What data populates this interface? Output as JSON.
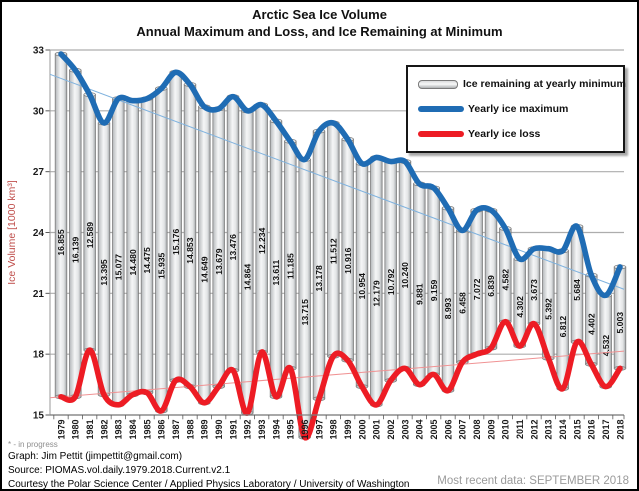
{
  "title": {
    "line1": "Arctic Sea Ice Volume",
    "line2": "Annual Maximum and Loss, and Ice Remaining at Minimum"
  },
  "y_axis": {
    "title": "Ice Volume [1000 km³]",
    "min": 15,
    "max": 33,
    "title_color": "#C0504D"
  },
  "legend": {
    "items": [
      {
        "label": "Ice remaining at yearly minimum",
        "swatch": "gray-bar"
      },
      {
        "label": "Yearly ice maximum",
        "swatch": "blue-line"
      },
      {
        "label": "Yearly ice loss",
        "swatch": "red-line"
      }
    ]
  },
  "footer": {
    "note": "* - in progress",
    "graph_credit": "Graph: Jim Pettit (jimpettit@gmail.com)",
    "source": "Source: PIOMAS.vol.daily.1979.2018.Current.v2.1",
    "courtesy": "Courtesy the Polar Science Center / Applied Physics Laboratory / University of Washington",
    "most_recent": "Most recent data: SEPTEMBER 2018"
  },
  "colors": {
    "max_line": "#1F6CB4",
    "loss_line": "#ED1C24",
    "max_trend": "#7FB2DE",
    "loss_trend": "#F09293",
    "gridline": "#ADADAD",
    "axis_text": "#1B1B1B",
    "y_axis_title": "#C0504D",
    "muted_text": "#9B9B9B",
    "bar_edge": "#7C7C7C"
  },
  "chart_data": {
    "type": "bar",
    "subtype": "bar+smooth-line combo; bars hang from the yearly-maximum line down to the yearly-loss line so bar length = ice remaining at minimum",
    "title": "Arctic Sea Ice Volume",
    "subtitle": "Annual Maximum and Loss, and Ice Remaining at Minimum",
    "ylabel": "Ice Volume [1000 km³]",
    "ylim": [
      15,
      33
    ],
    "yticks": [
      15,
      18,
      21,
      24,
      27,
      30,
      33
    ],
    "grid": "horizontal",
    "legend_position": "top-right inset",
    "categories": [
      1979,
      1980,
      1981,
      1982,
      1983,
      1984,
      1985,
      1986,
      1987,
      1988,
      1989,
      1990,
      1991,
      1992,
      1993,
      1994,
      1995,
      1996,
      1997,
      1998,
      1999,
      2000,
      2001,
      2002,
      2003,
      2004,
      2005,
      2006,
      2007,
      2008,
      2009,
      2010,
      2011,
      2012,
      2013,
      2014,
      2015,
      2016,
      2017,
      2018
    ],
    "series": [
      {
        "name": "Ice remaining at yearly minimum",
        "type": "bar",
        "values": [
          16.855,
          16.139,
          12.589,
          13.395,
          15.077,
          14.48,
          14.475,
          15.935,
          15.176,
          14.853,
          14.649,
          13.679,
          13.476,
          14.864,
          12.234,
          13.611,
          11.185,
          13.715,
          13.178,
          11.512,
          10.916,
          10.954,
          12.179,
          10.792,
          10.24,
          9.881,
          9.159,
          8.993,
          6.458,
          7.072,
          6.839,
          4.582,
          4.302,
          3.673,
          5.392,
          6.812,
          5.684,
          4.402,
          4.532,
          5.003
        ],
        "labels": [
          "16.855",
          "16.139",
          "12.589",
          "13.395",
          "15.077",
          "14.480",
          "14.475",
          "15.935",
          "15.176",
          "14.853",
          "14.649",
          "13.679",
          "13.476",
          "14.864",
          "12.234",
          "13.611",
          "11.185",
          "13.715",
          "13.178",
          "11.512",
          "10.916",
          "10.954",
          "12.179",
          "10.792",
          "10.240",
          "9.881",
          "9.159",
          "8.993",
          "6.458",
          "7.072",
          "6.839",
          "4.582",
          "4.302",
          "3.673",
          "5.392",
          "6.812",
          "5.684",
          "4.402",
          "4.532",
          "5.003"
        ]
      },
      {
        "name": "Yearly ice maximum",
        "type": "smooth-line",
        "color": "#1F6CB4",
        "estimated": true,
        "values": [
          32.8,
          32.0,
          30.8,
          29.4,
          30.6,
          30.5,
          30.6,
          31.1,
          31.9,
          31.3,
          30.2,
          30.1,
          30.7,
          30.0,
          30.3,
          29.5,
          28.5,
          27.6,
          29.0,
          29.4,
          28.6,
          27.4,
          27.7,
          27.5,
          27.5,
          26.4,
          26.2,
          25.2,
          24.1,
          25.1,
          25.1,
          24.2,
          22.7,
          23.2,
          23.2,
          23.1,
          24.3,
          21.9,
          20.9,
          22.3
        ]
      },
      {
        "name": "Yearly ice loss",
        "type": "smooth-line",
        "color": "#ED1C24",
        "estimated": true,
        "values": [
          15.9,
          15.9,
          18.2,
          16.0,
          15.5,
          16.0,
          16.1,
          15.2,
          16.7,
          16.4,
          15.6,
          16.4,
          17.2,
          15.1,
          18.1,
          15.9,
          17.3,
          13.9,
          15.8,
          17.9,
          17.7,
          16.4,
          15.5,
          16.7,
          17.3,
          16.5,
          17.0,
          16.2,
          17.6,
          18.0,
          18.3,
          19.6,
          18.4,
          19.5,
          17.8,
          16.3,
          18.6,
          17.5,
          16.4,
          17.3
        ]
      }
    ],
    "trendlines": [
      {
        "series": "Yearly ice maximum",
        "color": "#7FB2DE",
        "start_value": 31.8,
        "end_value": 21.2
      },
      {
        "series": "Yearly ice loss",
        "color": "#F09293",
        "start_value": 15.85,
        "end_value": 18.15
      }
    ]
  }
}
